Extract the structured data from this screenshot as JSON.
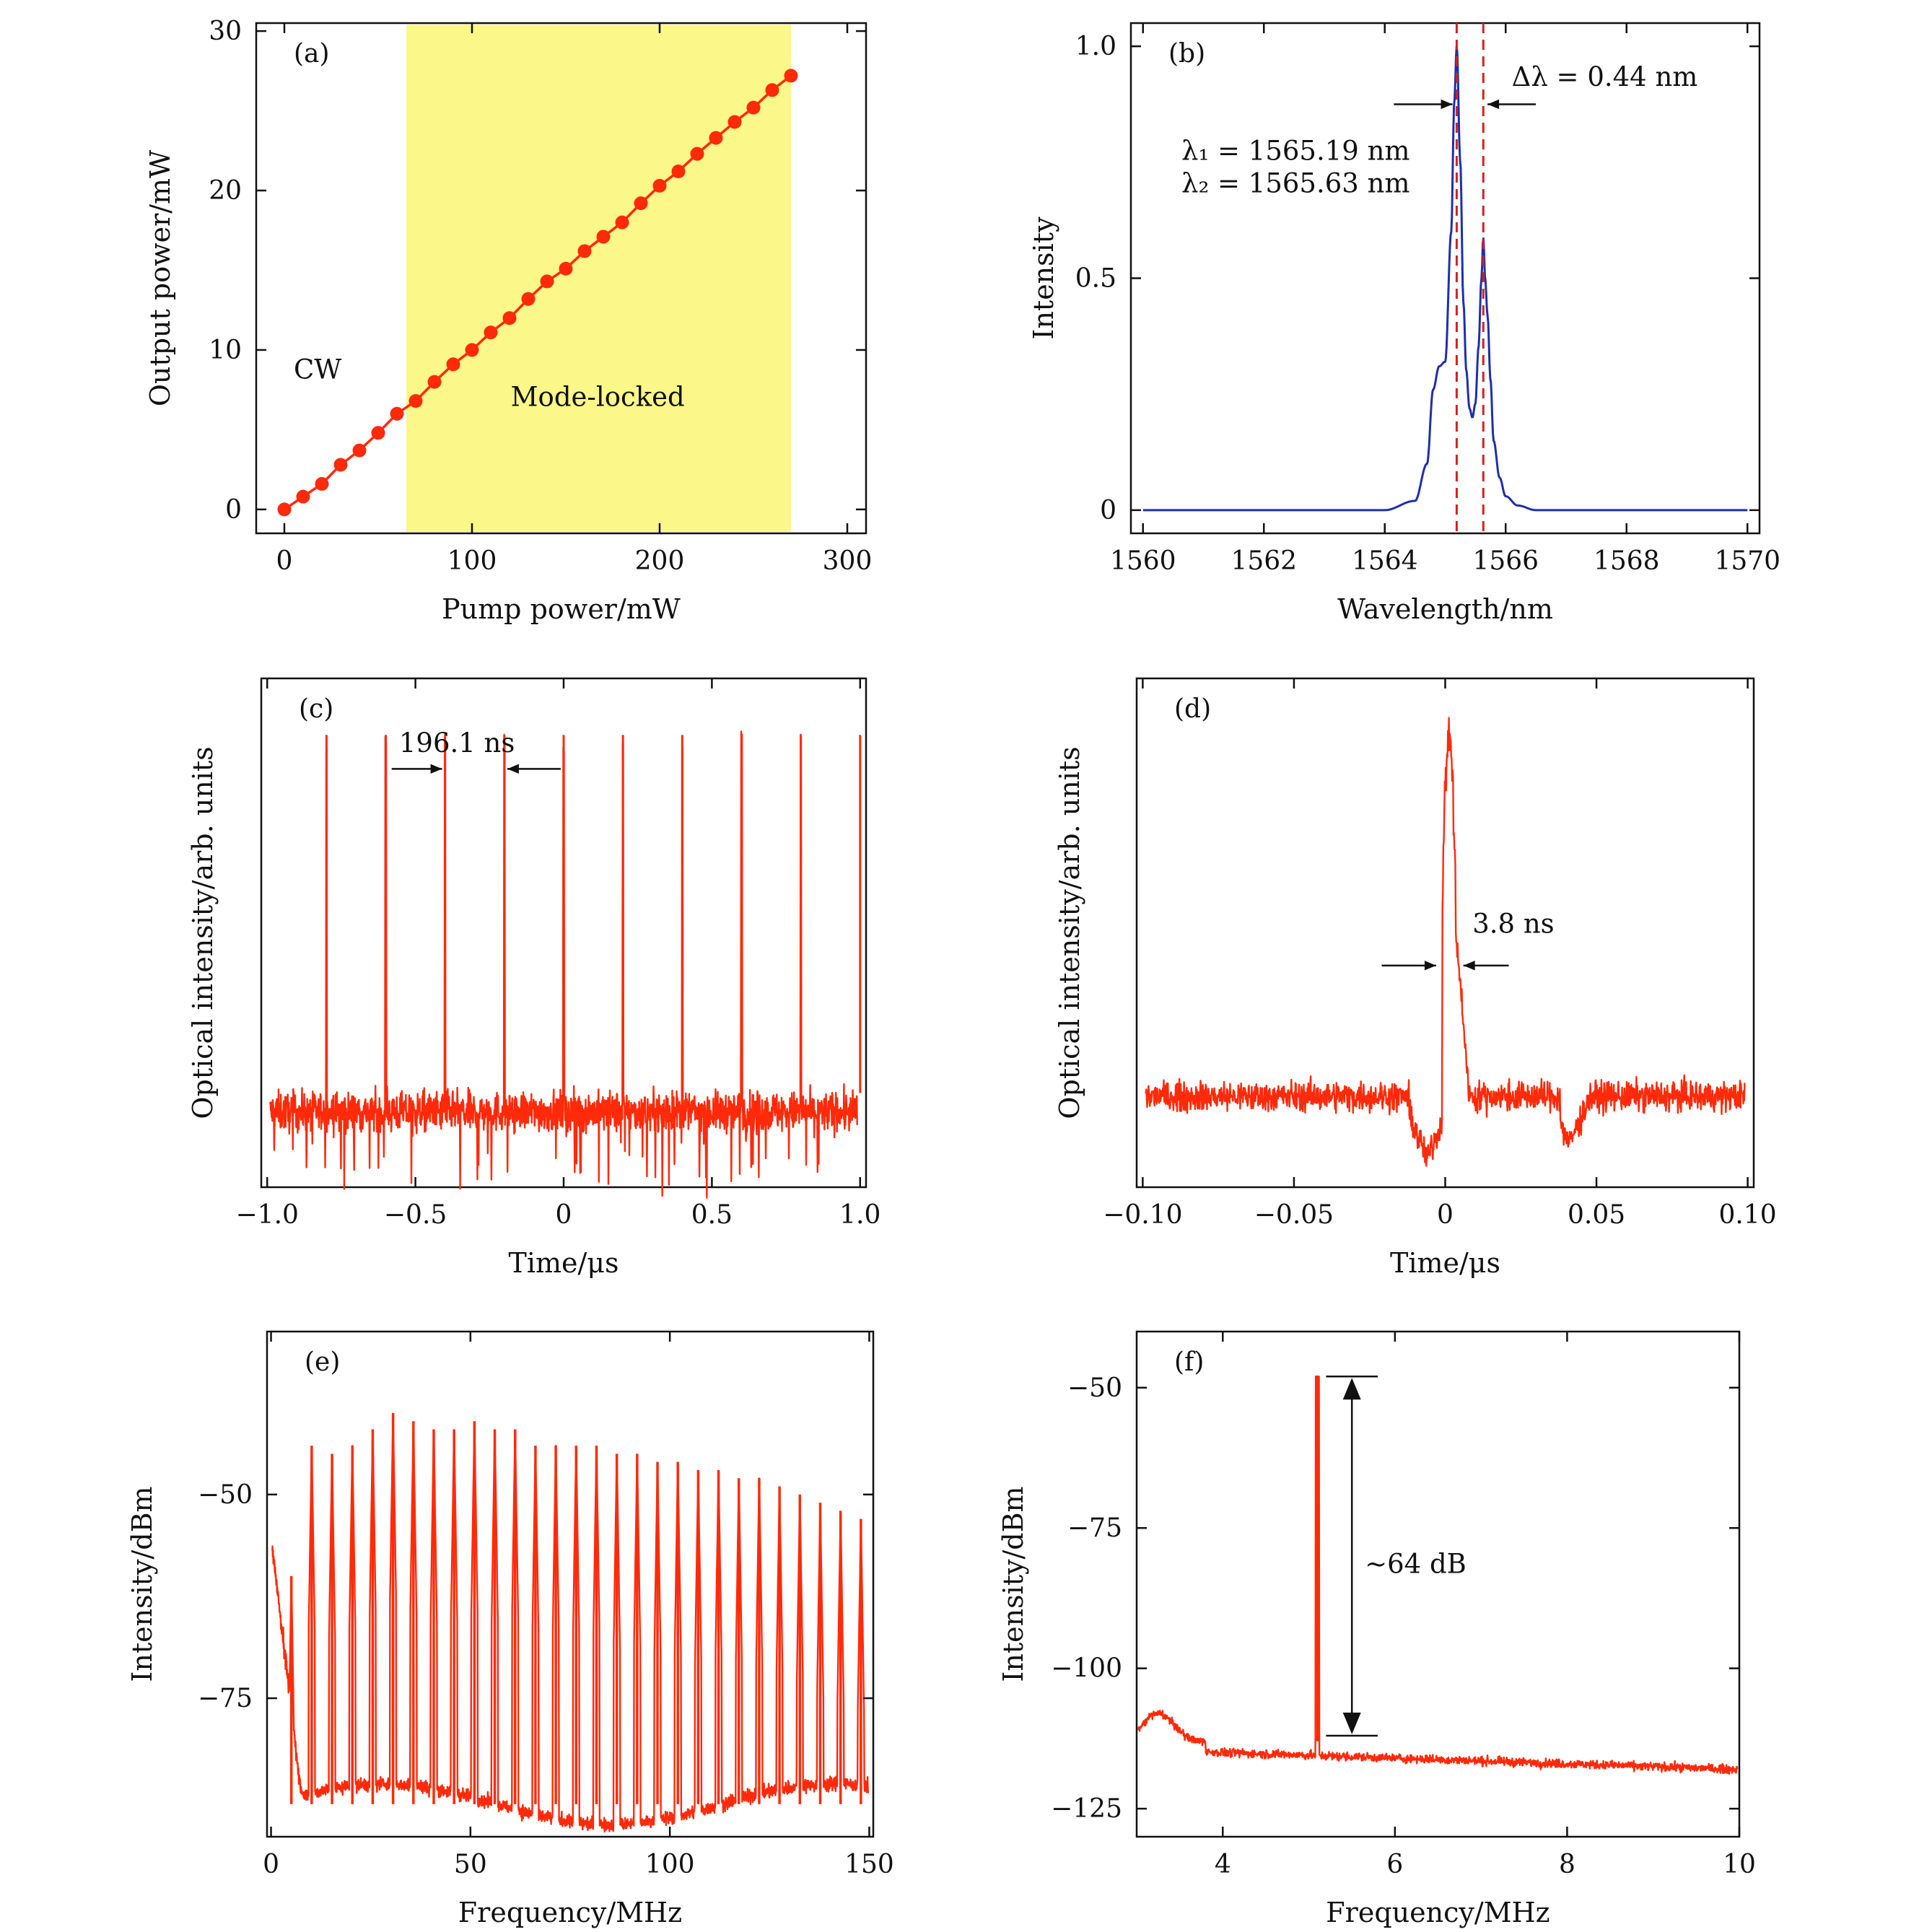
{
  "chart_data": [
    {
      "panel": "(a)",
      "type": "scatter",
      "marker_line": true,
      "xlabel": "Pump power/mW",
      "ylabel": "Output power/mW",
      "xlim": [
        -15,
        310
      ],
      "ylim": [
        -1.5,
        30.5
      ],
      "xticks": [
        0,
        100,
        200,
        300
      ],
      "yticks": [
        0,
        10,
        20,
        30
      ],
      "x": [
        0,
        10,
        20,
        30,
        40,
        50,
        60,
        70,
        80,
        90,
        100,
        110,
        120,
        130,
        140,
        150,
        160,
        170,
        180,
        190,
        200,
        210,
        220,
        230,
        240,
        250,
        260,
        270
      ],
      "y": [
        0,
        0.8,
        1.6,
        2.8,
        3.7,
        4.8,
        6.0,
        6.8,
        8.0,
        9.1,
        10.0,
        11.1,
        12.0,
        13.2,
        14.3,
        15.1,
        16.2,
        17.1,
        18.0,
        19.2,
        20.3,
        21.2,
        22.3,
        23.3,
        24.3,
        25.2,
        26.3,
        27.2
      ],
      "shaded_region": {
        "x_start": 65,
        "x_end": 270,
        "color": "#fbf788"
      },
      "annotations": [
        "CW",
        "Mode-locked"
      ],
      "colors": {
        "series": "#ff2a0a"
      }
    },
    {
      "panel": "(b)",
      "type": "line",
      "xlabel": "Wavelength/nm",
      "ylabel": "Intensity",
      "xlim": [
        1559.8,
        1570.2
      ],
      "ylim": [
        -0.05,
        1.05
      ],
      "xticks": [
        1560,
        1562,
        1564,
        1566,
        1568,
        1570
      ],
      "yticks": [
        0,
        0.5,
        1.0
      ],
      "ytick_labels": [
        "0",
        "0.5",
        "1.0"
      ],
      "x": [
        1560,
        1564,
        1564.5,
        1564.7,
        1564.8,
        1564.9,
        1565.0,
        1565.1,
        1565.15,
        1565.19,
        1565.25,
        1565.3,
        1565.35,
        1565.4,
        1565.45,
        1565.5,
        1565.55,
        1565.6,
        1565.63,
        1565.66,
        1565.7,
        1565.75,
        1565.8,
        1565.9,
        1566.0,
        1566.2,
        1566.5,
        1570
      ],
      "y": [
        0,
        0,
        0.02,
        0.1,
        0.26,
        0.31,
        0.32,
        0.6,
        0.88,
        1.0,
        0.75,
        0.45,
        0.3,
        0.22,
        0.2,
        0.23,
        0.35,
        0.5,
        0.59,
        0.5,
        0.42,
        0.28,
        0.15,
        0.07,
        0.03,
        0.01,
        0,
        0
      ],
      "markers": [
        1565.19,
        1565.63
      ],
      "annotations": [
        "λ₁ = 1565.19 nm",
        "λ₂ = 1565.63 nm",
        "Δλ = 0.44 nm"
      ],
      "colors": {
        "series": "#1f2fa8",
        "markers": "#d62020"
      }
    },
    {
      "panel": "(c)",
      "type": "line",
      "xlabel": "Time/μs",
      "ylabel": "Optical intensity/arb. units",
      "xlim": [
        -1.02,
        1.02
      ],
      "ylim": [
        -0.2,
        1.15
      ],
      "xticks": [
        -1.0,
        -0.5,
        0,
        0.5,
        1.0
      ],
      "xtick_labels": [
        "−1.0",
        "−0.5",
        "0",
        "0.5",
        "1.0"
      ],
      "noise_level": 0,
      "pulse_times": [
        -0.8,
        -0.6,
        -0.4,
        -0.2,
        0.0,
        0.2,
        0.4,
        0.6,
        0.8,
        1.0
      ],
      "pulse_height": 1.0,
      "pulse_spacing_ns": 196.1,
      "annotations": [
        "196.1 ns"
      ],
      "colors": {
        "series": "#ff2a0a"
      }
    },
    {
      "panel": "(d)",
      "type": "line",
      "xlabel": "Time/μs",
      "ylabel": "Optical intensity/arb. units",
      "xlim": [
        -0.102,
        0.102
      ],
      "ylim": [
        -0.25,
        1.15
      ],
      "xticks": [
        -0.1,
        -0.05,
        0,
        0.05,
        0.1
      ],
      "xtick_labels": [
        "−0.10",
        "−0.05",
        "0",
        "0.05",
        "0.10"
      ],
      "pulse_time": 0,
      "pulse_width_ns": 3.8,
      "annotations": [
        "3.8 ns"
      ],
      "colors": {
        "series": "#ff2a0a"
      }
    },
    {
      "panel": "(e)",
      "type": "line",
      "xlabel": "Frequency/MHz",
      "ylabel": "Intensity/dBm",
      "xlim": [
        -1,
        151
      ],
      "ylim": [
        -92,
        -30
      ],
      "xticks": [
        0,
        50,
        100,
        150
      ],
      "yticks": [
        -50,
        -75
      ],
      "ytick_labels": [
        "−50",
        "−75"
      ],
      "harmonic_spacing_mhz": 5.1,
      "harmonic_frequencies": [
        5.1,
        10.2,
        15.3,
        20.4,
        25.5,
        30.6,
        35.7,
        40.8,
        45.9,
        51.0,
        56.1,
        61.2,
        66.3,
        71.4,
        76.5,
        81.6,
        86.7,
        91.8,
        96.9,
        102.0,
        107.1,
        112.2,
        117.3,
        122.4,
        127.5,
        132.6,
        137.7,
        142.8,
        147.9
      ],
      "harmonic_peaks_dbm": [
        -60,
        -44,
        -45,
        -44,
        -42,
        -40,
        -41,
        -42,
        -42,
        -41,
        -42,
        -42,
        -44,
        -44,
        -44,
        -44,
        -45,
        -45,
        -46,
        -46,
        -47,
        -47,
        -48,
        -48,
        -49,
        -50,
        -51,
        -52,
        -53
      ],
      "noise_floor_dbm": -88,
      "colors": {
        "series": "#ff2a0a"
      }
    },
    {
      "panel": "(f)",
      "type": "line",
      "xlabel": "Frequency/MHz",
      "ylabel": "Intensity/dBm",
      "xlim": [
        3,
        10
      ],
      "ylim": [
        -130,
        -40
      ],
      "xticks": [
        4,
        6,
        8,
        10
      ],
      "yticks": [
        -50,
        -75,
        -100,
        -125
      ],
      "ytick_labels": [
        "−50",
        "−75",
        "−100",
        "−125"
      ],
      "peak_frequency_mhz": 5.1,
      "peak_dbm": -48,
      "noise_floor_dbm": -115,
      "snr_db": 64,
      "annotations": [
        "∼64 dB"
      ],
      "colors": {
        "series": "#ff2a0a"
      }
    }
  ],
  "panel_labels": [
    "(a)",
    "(b)",
    "(c)",
    "(d)",
    "(e)",
    "(f)"
  ]
}
